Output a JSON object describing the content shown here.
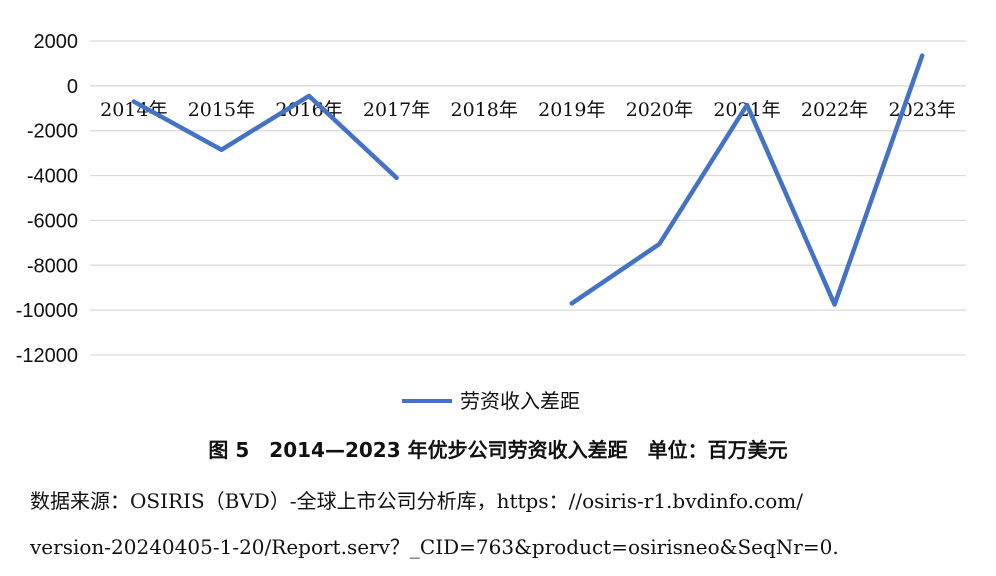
{
  "chart_data": {
    "type": "line",
    "categories": [
      "2014年",
      "2015年",
      "2016年",
      "2017年",
      "2018年",
      "2019年",
      "2020年",
      "2021年",
      "2022年",
      "2023年"
    ],
    "series": [
      {
        "name": "劳资收入差距",
        "values": [
          -700,
          -2850,
          -450,
          -4100,
          null,
          -9700,
          -7050,
          -850,
          -9750,
          1350
        ]
      }
    ],
    "yticks": [
      "2000",
      "0",
      "-2000",
      "-4000",
      "-6000",
      "-8000",
      "-10000",
      "-12000"
    ],
    "ylim": [
      -12000,
      2000
    ],
    "grid": true,
    "legend_position": "bottom",
    "colors": {
      "series": "#4472c4",
      "grid": "#d9d9d9"
    }
  },
  "caption": "图 5　2014—2023 年优步公司劳资收入差距　单位：百万美元",
  "source_line1": "数据来源：OSIRIS（BVD）-全球上市公司分析库，https：//osiris-r1.bvdinfo.com/",
  "source_line2": "version-20240405-1-20/Report.serv？_CID=763&product=osirisneo&SeqNr=0."
}
